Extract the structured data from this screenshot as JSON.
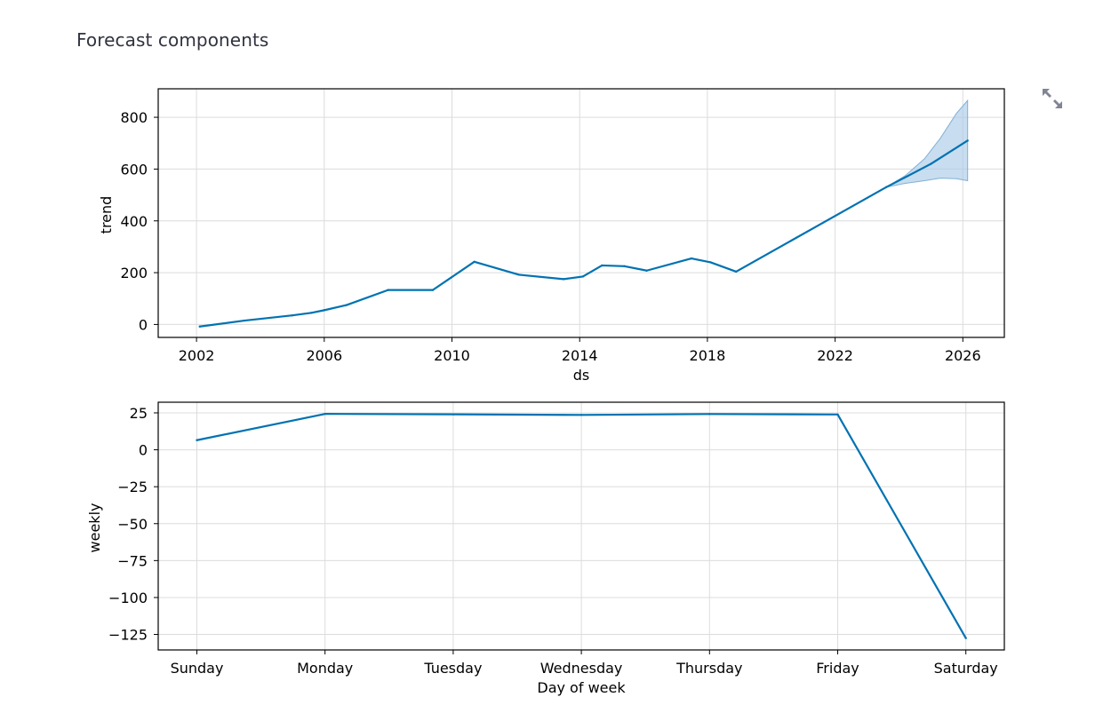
{
  "page": {
    "heading": "Forecast components"
  },
  "toolbar": {
    "fullscreen_icon": "expand-arrows-icon",
    "icon_color": "#808495"
  },
  "colors": {
    "line": "#0072b2",
    "band": "#aacbe6"
  },
  "chart_data": [
    {
      "type": "line",
      "xlabel": "ds",
      "ylabel": "trend",
      "x_ticks": [
        "2002",
        "2006",
        "2010",
        "2014",
        "2018",
        "2022",
        "2026"
      ],
      "x_tick_values": [
        2002,
        2006,
        2010,
        2014,
        2018,
        2022,
        2026
      ],
      "y_ticks": [
        "0",
        "200",
        "400",
        "600",
        "800"
      ],
      "y_tick_values": [
        0,
        200,
        400,
        600,
        800
      ],
      "xlim": [
        2000.8,
        2027.3
      ],
      "ylim": [
        -50,
        910
      ],
      "grid": true,
      "series": [
        {
          "x": [
            2002.1,
            2003.5,
            2005.0,
            2005.6,
            2006.0,
            2006.7,
            2008.0,
            2009.4,
            2010.7,
            2012.1,
            2013.5,
            2014.1,
            2014.7,
            2015.4,
            2016.1,
            2017.5,
            2018.1,
            2018.9,
            2023.6,
            2025.0,
            2026.15
          ],
          "y": [
            -8,
            15,
            35,
            45,
            55,
            75,
            133,
            133,
            242,
            192,
            175,
            185,
            228,
            225,
            208,
            255,
            240,
            204,
            530,
            620,
            710
          ]
        }
      ],
      "uncertainty": {
        "x": [
          2023.6,
          2024.2,
          2024.8,
          2025.3,
          2025.8,
          2026.15
        ],
        "upper": [
          530,
          575,
          640,
          720,
          815,
          865
        ],
        "lower": [
          530,
          545,
          555,
          565,
          563,
          555
        ]
      }
    },
    {
      "type": "line",
      "xlabel": "Day of week",
      "ylabel": "weekly",
      "categories": [
        "Sunday",
        "Monday",
        "Tuesday",
        "Wednesday",
        "Thursday",
        "Friday",
        "Saturday"
      ],
      "y_ticks": [
        "25",
        "0",
        "−25",
        "−50",
        "−75",
        "−100",
        "−125"
      ],
      "y_tick_values": [
        25,
        0,
        -25,
        -50,
        -75,
        -100,
        -125
      ],
      "ylim": [
        -135.5,
        32.2
      ],
      "grid": true,
      "series": [
        {
          "values": [
            6.5,
            24.3,
            24.0,
            23.6,
            24.2,
            23.9,
            -127.5
          ]
        }
      ]
    }
  ]
}
